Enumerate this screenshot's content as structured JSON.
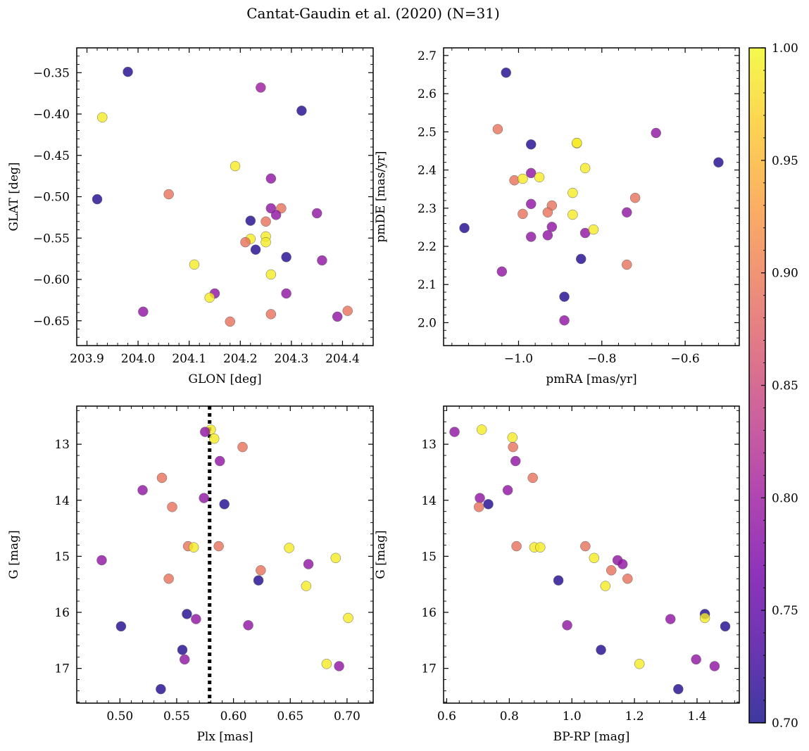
{
  "suptitle": "Cantat-Gaudin et al. (2020) (N=31)",
  "colors": {
    "background": "#ffffff",
    "axes": "#000000",
    "reference_line": "#000000"
  },
  "chart_data": {
    "type": "scatter",
    "title": "Cantat-Gaudin et al. (2020) (N=31)",
    "colormap": "plasma",
    "colorbar": {
      "range": [
        0.7,
        1.0
      ],
      "ticks": [
        0.7,
        0.75,
        0.8,
        0.85,
        0.9,
        0.95,
        1.0
      ],
      "tick_labels": [
        "0.70",
        "0.75",
        "0.80",
        "0.85",
        "0.90",
        "0.95",
        "1.00"
      ],
      "colors_hex": [
        "#0d0887",
        "#46039f",
        "#7201a8",
        "#9c179e",
        "#bd3786",
        "#d8576b",
        "#ed7953",
        "#fb9f3a",
        "#fdca26",
        "#f0f921"
      ],
      "display_alpha": 0.8
    },
    "panels": [
      {
        "id": "glon-glat",
        "xlabel": "GLON [deg]",
        "ylabel": "GLAT [deg]",
        "xlim": [
          203.88,
          204.46
        ],
        "ylim": [
          -0.68,
          -0.32
        ],
        "y_inverted": false,
        "xticks": [
          203.9,
          204.0,
          204.1,
          204.2,
          204.3,
          204.4
        ],
        "xtick_labels": [
          "203.9",
          "204.0",
          "204.1",
          "204.2",
          "204.3",
          "204.4"
        ],
        "yticks": [
          -0.65,
          -0.6,
          -0.55,
          -0.5,
          -0.45,
          -0.4,
          -0.35
        ],
        "ytick_labels": [
          "−0.65",
          "−0.60",
          "−0.55",
          "−0.50",
          "−0.45",
          "−0.40",
          "−0.35"
        ],
        "x": [
          203.98,
          204.24,
          203.93,
          204.32,
          204.19,
          204.26,
          203.92,
          204.06,
          204.22,
          204.28,
          204.26,
          204.27,
          204.35,
          204.25,
          204.22,
          204.25,
          204.21,
          204.25,
          204.23,
          204.29,
          204.36,
          204.11,
          204.26,
          204.15,
          204.29,
          204.14,
          204.01,
          204.41,
          204.26,
          204.39,
          204.18
        ],
        "y": [
          -0.349,
          -0.368,
          -0.404,
          -0.396,
          -0.463,
          -0.478,
          -0.503,
          -0.497,
          -0.529,
          -0.514,
          -0.514,
          -0.522,
          -0.52,
          -0.53,
          -0.551,
          -0.548,
          -0.555,
          -0.555,
          -0.564,
          -0.573,
          -0.577,
          -0.582,
          -0.594,
          -0.617,
          -0.617,
          -0.622,
          -0.639,
          -0.638,
          -0.642,
          -0.645,
          -0.651
        ],
        "c": [
          0.71,
          0.8,
          0.99,
          0.71,
          0.99,
          0.79,
          0.71,
          0.89,
          0.71,
          0.89,
          0.79,
          0.79,
          0.79,
          0.89,
          0.99,
          0.99,
          0.89,
          0.99,
          0.71,
          0.71,
          0.79,
          0.99,
          0.99,
          0.79,
          0.79,
          0.99,
          0.79,
          0.89,
          0.89,
          0.79,
          0.89
        ]
      },
      {
        "id": "pmra-pmde",
        "xlabel": "pmRA [mas/yr]",
        "ylabel": "pmDE [mas/yr]",
        "xlim": [
          -1.18,
          -0.47
        ],
        "ylim": [
          1.94,
          2.72
        ],
        "y_inverted": false,
        "xticks": [
          -1.0,
          -0.8,
          -0.6
        ],
        "xtick_labels": [
          "−1.0",
          "−0.8",
          "−0.6"
        ],
        "yticks": [
          2.0,
          2.1,
          2.2,
          2.3,
          2.4,
          2.5,
          2.6,
          2.7
        ],
        "ytick_labels": [
          "2.0",
          "2.1",
          "2.2",
          "2.3",
          "2.4",
          "2.5",
          "2.6",
          "2.7"
        ],
        "x": [
          -1.03,
          -1.05,
          -0.67,
          -0.97,
          -0.86,
          -0.86,
          -0.52,
          -0.84,
          -0.97,
          -1.01,
          -0.99,
          -0.95,
          -0.87,
          -0.72,
          -0.97,
          -0.92,
          -0.99,
          -0.93,
          -0.87,
          -0.74,
          -0.92,
          -0.97,
          -0.93,
          -0.84,
          -0.82,
          -0.85,
          -0.74,
          -1.13,
          -1.04,
          -0.89,
          -0.89
        ],
        "y": [
          2.655,
          2.507,
          2.497,
          2.467,
          2.47,
          2.471,
          2.42,
          2.405,
          2.392,
          2.373,
          2.377,
          2.381,
          2.34,
          2.327,
          2.311,
          2.307,
          2.285,
          2.289,
          2.283,
          2.289,
          2.251,
          2.225,
          2.229,
          2.235,
          2.244,
          2.167,
          2.152,
          2.248,
          2.134,
          2.068,
          2.006
        ],
        "c": [
          0.71,
          0.89,
          0.79,
          0.71,
          0.99,
          0.99,
          0.71,
          0.99,
          0.79,
          0.89,
          0.99,
          0.99,
          0.99,
          0.89,
          0.79,
          0.89,
          0.89,
          0.89,
          0.99,
          0.79,
          0.79,
          0.79,
          0.79,
          0.79,
          0.99,
          0.71,
          0.89,
          0.71,
          0.79,
          0.71,
          0.79
        ]
      },
      {
        "id": "plx-g",
        "xlabel": "Plx [mas]",
        "ylabel": "G [mag]",
        "xlim": [
          0.462,
          0.723
        ],
        "ylim": [
          17.62,
          12.32
        ],
        "y_inverted": true,
        "xticks": [
          0.5,
          0.55,
          0.6,
          0.65,
          0.7
        ],
        "xtick_labels": [
          "0.50",
          "0.55",
          "0.60",
          "0.65",
          "0.70"
        ],
        "yticks": [
          13,
          14,
          15,
          16,
          17
        ],
        "ytick_labels": [
          "13",
          "14",
          "15",
          "16",
          "17"
        ],
        "reference_line": {
          "orientation": "vertical",
          "x": 0.579,
          "style": "dotted"
        },
        "x": [
          0.58,
          0.575,
          0.583,
          0.608,
          0.588,
          0.537,
          0.52,
          0.546,
          0.574,
          0.592,
          0.56,
          0.565,
          0.587,
          0.649,
          0.69,
          0.484,
          0.666,
          0.624,
          0.543,
          0.622,
          0.664,
          0.559,
          0.567,
          0.701,
          0.613,
          0.501,
          0.555,
          0.557,
          0.682,
          0.693,
          0.536
        ],
        "y": [
          12.74,
          12.78,
          12.9,
          13.05,
          13.3,
          13.6,
          13.82,
          14.12,
          13.96,
          14.07,
          14.82,
          14.84,
          14.82,
          14.85,
          15.03,
          15.07,
          15.14,
          15.25,
          15.4,
          15.43,
          15.53,
          16.03,
          16.12,
          16.1,
          16.23,
          16.25,
          16.67,
          16.84,
          16.92,
          16.96,
          17.37
        ],
        "c": [
          0.99,
          0.79,
          0.99,
          0.89,
          0.79,
          0.89,
          0.79,
          0.89,
          0.79,
          0.71,
          0.89,
          0.99,
          0.89,
          0.99,
          0.99,
          0.79,
          0.79,
          0.89,
          0.89,
          0.71,
          0.99,
          0.71,
          0.79,
          0.99,
          0.79,
          0.71,
          0.71,
          0.79,
          0.99,
          0.79,
          0.71
        ]
      },
      {
        "id": "bprp-g",
        "xlabel": "BP-RP [mag]",
        "ylabel": "G [mag]",
        "xlim": [
          0.59,
          1.535
        ],
        "ylim": [
          17.62,
          12.32
        ],
        "y_inverted": true,
        "xticks": [
          0.6,
          0.8,
          1.0,
          1.2,
          1.4
        ],
        "xtick_labels": [
          "0.6",
          "0.8",
          "1.0",
          "1.2",
          "1.4"
        ],
        "yticks": [
          13,
          14,
          15,
          16,
          17
        ],
        "ytick_labels": [
          "13",
          "14",
          "15",
          "16",
          "17"
        ],
        "x": [
          0.625,
          0.712,
          0.81,
          0.812,
          0.82,
          0.875,
          0.795,
          0.706,
          0.733,
          0.703,
          0.823,
          0.88,
          0.899,
          1.043,
          1.071,
          1.146,
          1.162,
          1.126,
          1.178,
          0.957,
          1.107,
          1.425,
          1.425,
          1.315,
          1.49,
          0.985,
          1.093,
          1.397,
          1.216,
          1.456,
          1.34
        ],
        "y": [
          12.78,
          12.74,
          12.88,
          13.05,
          13.3,
          13.6,
          13.82,
          13.96,
          14.07,
          14.12,
          14.82,
          14.84,
          14.84,
          14.82,
          15.03,
          15.07,
          15.14,
          15.25,
          15.4,
          15.43,
          15.53,
          16.03,
          16.1,
          16.12,
          16.25,
          16.23,
          16.67,
          16.84,
          16.92,
          16.96,
          17.37
        ],
        "c": [
          0.79,
          0.99,
          0.99,
          0.89,
          0.79,
          0.89,
          0.79,
          0.79,
          0.71,
          0.89,
          0.89,
          0.99,
          0.99,
          0.89,
          0.99,
          0.79,
          0.79,
          0.89,
          0.89,
          0.71,
          0.99,
          0.71,
          0.99,
          0.79,
          0.71,
          0.79,
          0.71,
          0.79,
          0.99,
          0.79,
          0.71
        ]
      }
    ]
  }
}
